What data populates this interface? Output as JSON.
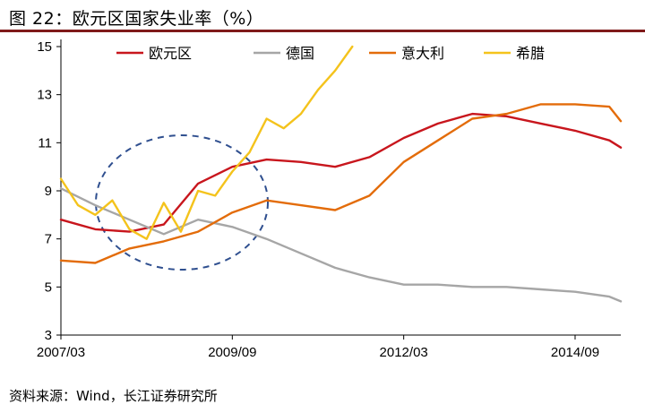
{
  "title": "图 22：欧元区国家失业率（%）",
  "source": "资料来源：Wind，长江证券研究所",
  "chart_data": {
    "type": "line",
    "ylim": [
      3,
      15
    ],
    "yticks": [
      3,
      5,
      7,
      9,
      11,
      13,
      15
    ],
    "xticks": [
      "2007/03",
      "2009/09",
      "2012/03",
      "2014/09"
    ],
    "xlim": [
      "2007/03",
      "2015/05"
    ],
    "grid": false,
    "legend_position": "top",
    "series": [
      {
        "name": "欧元区",
        "color": "#c8161d",
        "x": [
          "2007/03",
          "2007/09",
          "2008/03",
          "2008/09",
          "2009/03",
          "2009/09",
          "2010/03",
          "2010/09",
          "2011/03",
          "2011/09",
          "2012/03",
          "2012/09",
          "2013/03",
          "2013/09",
          "2014/03",
          "2014/09",
          "2015/03",
          "2015/05"
        ],
        "values": [
          7.8,
          7.4,
          7.3,
          7.6,
          9.3,
          10.0,
          10.3,
          10.2,
          10.0,
          10.4,
          11.2,
          11.8,
          12.2,
          12.1,
          11.8,
          11.5,
          11.1,
          10.8
        ]
      },
      {
        "name": "德国",
        "color": "#a6a6a6",
        "x": [
          "2007/03",
          "2007/09",
          "2008/03",
          "2008/09",
          "2009/03",
          "2009/09",
          "2010/03",
          "2010/09",
          "2011/03",
          "2011/09",
          "2012/03",
          "2012/09",
          "2013/03",
          "2013/09",
          "2014/03",
          "2014/09",
          "2015/03",
          "2015/05"
        ],
        "values": [
          9.1,
          8.4,
          7.8,
          7.2,
          7.8,
          7.5,
          7.0,
          6.4,
          5.8,
          5.4,
          5.1,
          5.1,
          5.0,
          5.0,
          4.9,
          4.8,
          4.6,
          4.4
        ]
      },
      {
        "name": "意大利",
        "color": "#e36c0a",
        "x": [
          "2007/03",
          "2007/09",
          "2008/03",
          "2008/09",
          "2009/03",
          "2009/09",
          "2010/03",
          "2010/09",
          "2011/03",
          "2011/09",
          "2012/03",
          "2012/09",
          "2013/03",
          "2013/09",
          "2014/03",
          "2014/09",
          "2015/03",
          "2015/05"
        ],
        "values": [
          6.1,
          6.0,
          6.6,
          6.9,
          7.3,
          8.1,
          8.6,
          8.4,
          8.2,
          8.8,
          10.2,
          11.1,
          12.0,
          12.2,
          12.6,
          12.6,
          12.5,
          11.9
        ]
      },
      {
        "name": "希腊",
        "color": "#f4c31c",
        "x": [
          "2007/03",
          "2007/06",
          "2007/09",
          "2007/12",
          "2008/03",
          "2008/06",
          "2008/09",
          "2008/12",
          "2009/03",
          "2009/06",
          "2009/09",
          "2009/12",
          "2010/03",
          "2010/06",
          "2010/09",
          "2010/12",
          "2011/03",
          "2011/06"
        ],
        "values": [
          9.5,
          8.4,
          8.0,
          8.6,
          7.4,
          7.0,
          8.5,
          7.3,
          9.0,
          8.8,
          9.8,
          10.6,
          12.0,
          11.6,
          12.2,
          13.2,
          14.0,
          15.0
        ]
      }
    ]
  }
}
